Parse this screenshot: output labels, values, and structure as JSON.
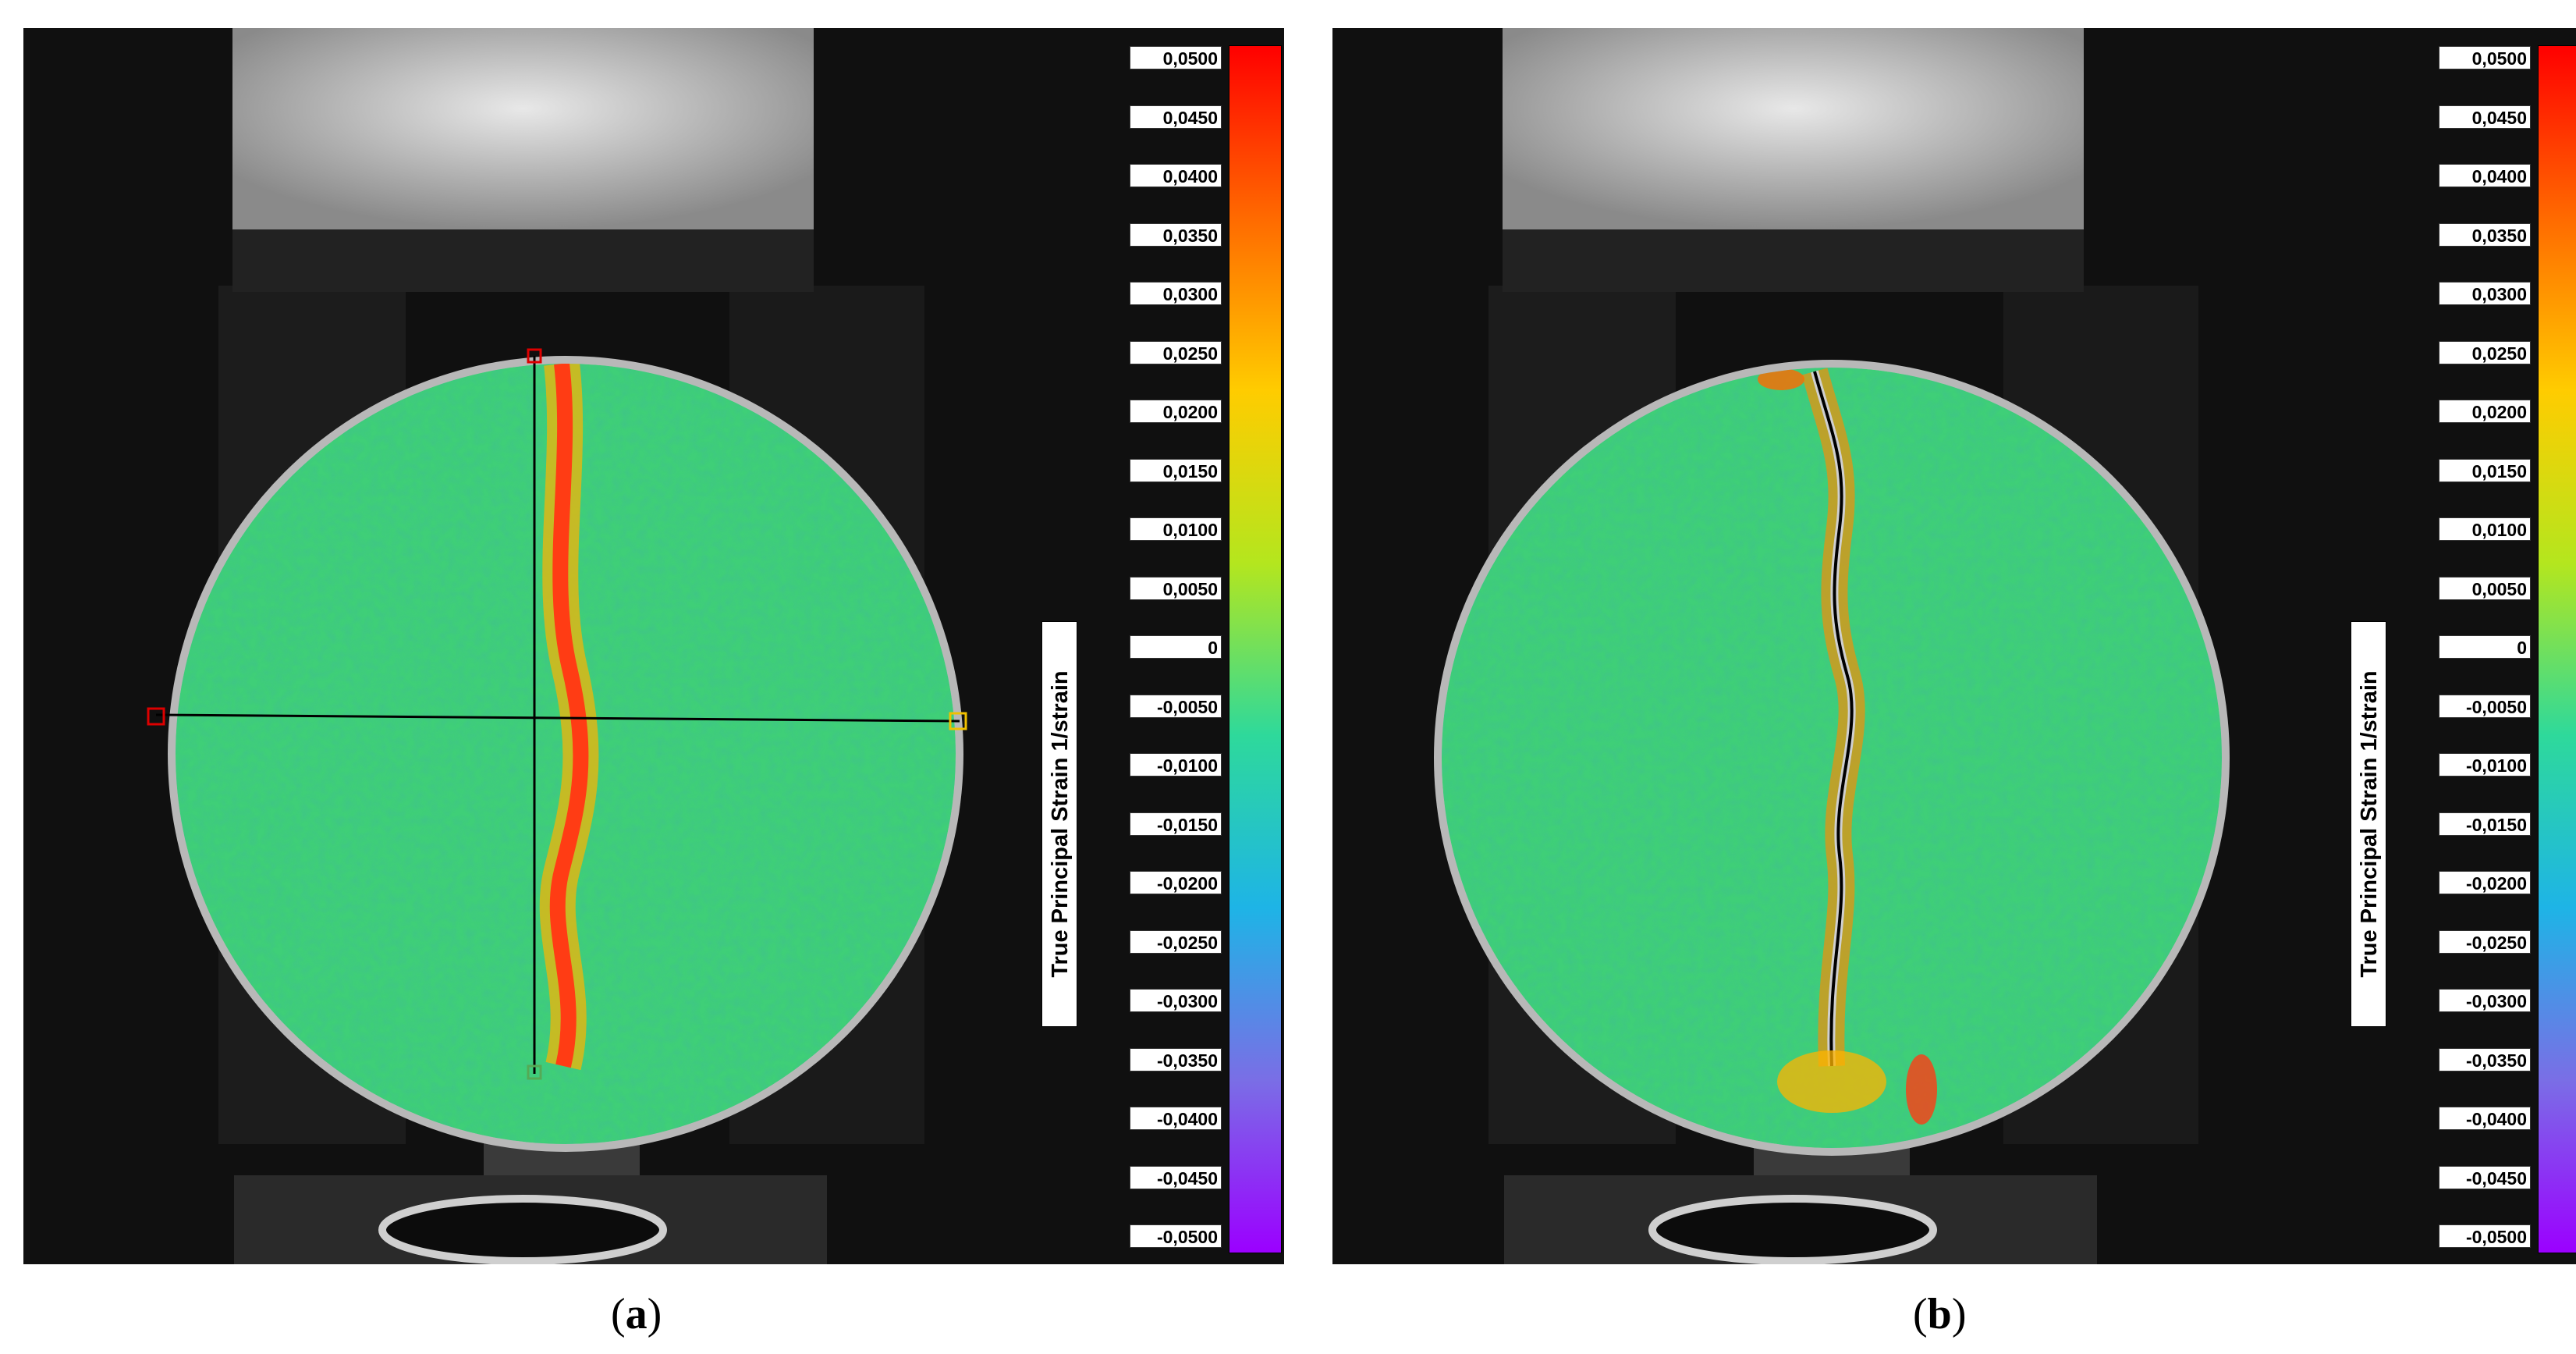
{
  "colorbar": {
    "title": "True Principal Strain 1/strain",
    "ticks": [
      "0,0500",
      "0,0450",
      "0,0400",
      "0,0350",
      "0,0300",
      "0,0250",
      "0,0200",
      "0,0150",
      "0,0100",
      "0,0050",
      "0",
      "-0,0050",
      "-0,0100",
      "-0,0150",
      "-0,0200",
      "-0,0250",
      "-0,0300",
      "-0,0350",
      "-0,0400",
      "-0,0450",
      "-0,0500"
    ],
    "colors": [
      "#ff0000",
      "#ff6a00",
      "#ffcc00",
      "#b4e61e",
      "#2ed99b",
      "#1eb4e6",
      "#7a6ee6",
      "#9b00ff"
    ]
  },
  "panels": [
    {
      "id": "a",
      "caption_open": "(",
      "caption_letter": "a",
      "caption_close": ")",
      "crack": "strain-band-with-measurement-lines"
    },
    {
      "id": "b",
      "caption_open": "(",
      "caption_letter": "b",
      "caption_close": ")",
      "crack": "open-crack"
    }
  ],
  "specimen_color": "#3fcf78",
  "crack_color": "#ff3c14"
}
